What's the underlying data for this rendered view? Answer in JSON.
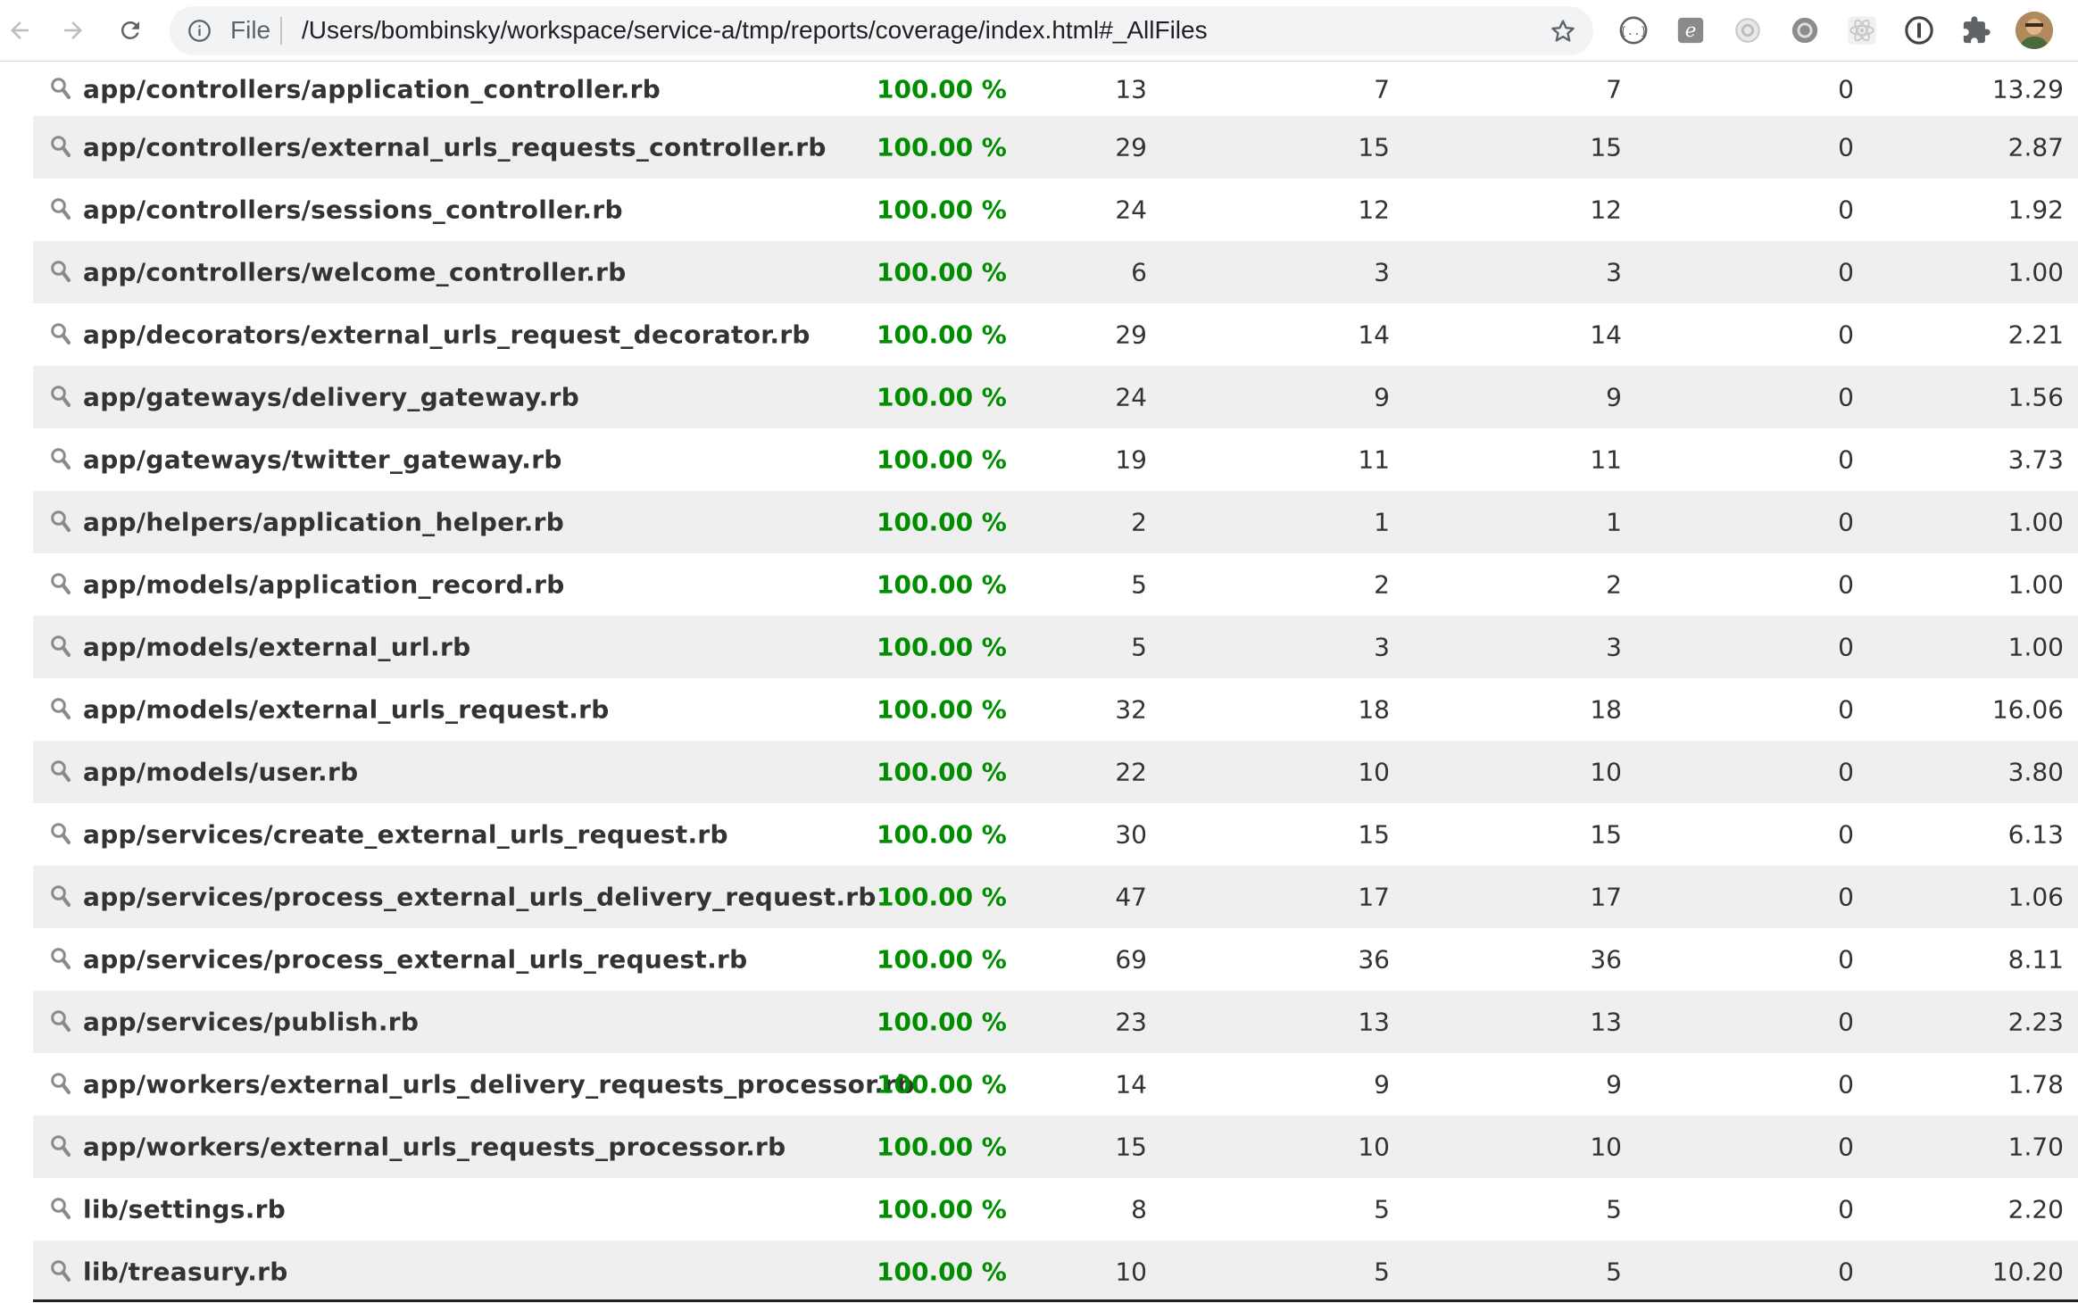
{
  "browser": {
    "url_scheme_label": "File",
    "url": "/Users/bombinsky/workspace/service-a/tmp/reports/coverage/index.html#_AllFiles",
    "extensions": [
      "json-viewer-icon",
      "evernote-icon",
      "camera-icon",
      "theme-icon",
      "react-icon",
      "onepassword-icon",
      "puzzle-icon",
      "avatar"
    ]
  },
  "coverage_table": {
    "rows": [
      {
        "file": "app/controllers/application_controller.rb",
        "coverage": "100.00 %",
        "lines": "13",
        "relevant": "7",
        "covered": "7",
        "missed": "0",
        "avg_hits": "13.29"
      },
      {
        "file": "app/controllers/external_urls_requests_controller.rb",
        "coverage": "100.00 %",
        "lines": "29",
        "relevant": "15",
        "covered": "15",
        "missed": "0",
        "avg_hits": "2.87"
      },
      {
        "file": "app/controllers/sessions_controller.rb",
        "coverage": "100.00 %",
        "lines": "24",
        "relevant": "12",
        "covered": "12",
        "missed": "0",
        "avg_hits": "1.92"
      },
      {
        "file": "app/controllers/welcome_controller.rb",
        "coverage": "100.00 %",
        "lines": "6",
        "relevant": "3",
        "covered": "3",
        "missed": "0",
        "avg_hits": "1.00"
      },
      {
        "file": "app/decorators/external_urls_request_decorator.rb",
        "coverage": "100.00 %",
        "lines": "29",
        "relevant": "14",
        "covered": "14",
        "missed": "0",
        "avg_hits": "2.21"
      },
      {
        "file": "app/gateways/delivery_gateway.rb",
        "coverage": "100.00 %",
        "lines": "24",
        "relevant": "9",
        "covered": "9",
        "missed": "0",
        "avg_hits": "1.56"
      },
      {
        "file": "app/gateways/twitter_gateway.rb",
        "coverage": "100.00 %",
        "lines": "19",
        "relevant": "11",
        "covered": "11",
        "missed": "0",
        "avg_hits": "3.73"
      },
      {
        "file": "app/helpers/application_helper.rb",
        "coverage": "100.00 %",
        "lines": "2",
        "relevant": "1",
        "covered": "1",
        "missed": "0",
        "avg_hits": "1.00"
      },
      {
        "file": "app/models/application_record.rb",
        "coverage": "100.00 %",
        "lines": "5",
        "relevant": "2",
        "covered": "2",
        "missed": "0",
        "avg_hits": "1.00"
      },
      {
        "file": "app/models/external_url.rb",
        "coverage": "100.00 %",
        "lines": "5",
        "relevant": "3",
        "covered": "3",
        "missed": "0",
        "avg_hits": "1.00"
      },
      {
        "file": "app/models/external_urls_request.rb",
        "coverage": "100.00 %",
        "lines": "32",
        "relevant": "18",
        "covered": "18",
        "missed": "0",
        "avg_hits": "16.06"
      },
      {
        "file": "app/models/user.rb",
        "coverage": "100.00 %",
        "lines": "22",
        "relevant": "10",
        "covered": "10",
        "missed": "0",
        "avg_hits": "3.80"
      },
      {
        "file": "app/services/create_external_urls_request.rb",
        "coverage": "100.00 %",
        "lines": "30",
        "relevant": "15",
        "covered": "15",
        "missed": "0",
        "avg_hits": "6.13"
      },
      {
        "file": "app/services/process_external_urls_delivery_request.rb",
        "coverage": "100.00 %",
        "lines": "47",
        "relevant": "17",
        "covered": "17",
        "missed": "0",
        "avg_hits": "1.06"
      },
      {
        "file": "app/services/process_external_urls_request.rb",
        "coverage": "100.00 %",
        "lines": "69",
        "relevant": "36",
        "covered": "36",
        "missed": "0",
        "avg_hits": "8.11"
      },
      {
        "file": "app/services/publish.rb",
        "coverage": "100.00 %",
        "lines": "23",
        "relevant": "13",
        "covered": "13",
        "missed": "0",
        "avg_hits": "2.23"
      },
      {
        "file": "app/workers/external_urls_delivery_requests_processor.rb",
        "coverage": "100.00 %",
        "lines": "14",
        "relevant": "9",
        "covered": "9",
        "missed": "0",
        "avg_hits": "1.78"
      },
      {
        "file": "app/workers/external_urls_requests_processor.rb",
        "coverage": "100.00 %",
        "lines": "15",
        "relevant": "10",
        "covered": "10",
        "missed": "0",
        "avg_hits": "1.70"
      },
      {
        "file": "lib/settings.rb",
        "coverage": "100.00 %",
        "lines": "8",
        "relevant": "5",
        "covered": "5",
        "missed": "0",
        "avg_hits": "2.20"
      },
      {
        "file": "lib/treasury.rb",
        "coverage": "100.00 %",
        "lines": "10",
        "relevant": "5",
        "covered": "5",
        "missed": "0",
        "avg_hits": "10.20"
      }
    ]
  },
  "colors": {
    "covered_green": "#008e00",
    "row_alt": "#efefef",
    "text": "#333333"
  }
}
